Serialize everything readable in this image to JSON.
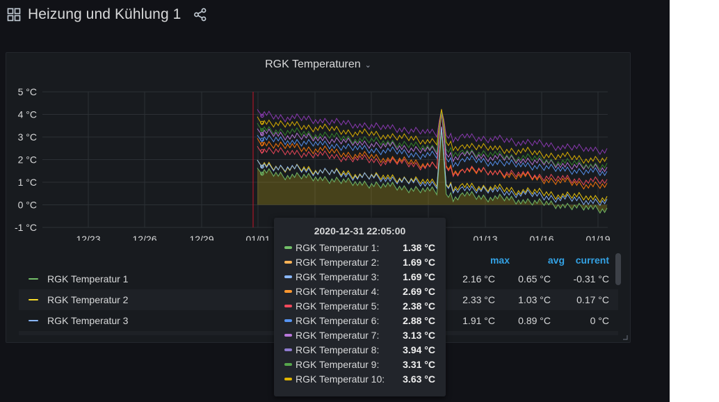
{
  "dashboard": {
    "title": "Heizung und Kühlung 1"
  },
  "panel": {
    "title": "RGK Temperaturen",
    "x_ticks": [
      "12/23",
      "12/26",
      "12/29",
      "01/01",
      "01/13",
      "01/16",
      "01/19"
    ],
    "y_ticks": [
      "5 °C",
      "4 °C",
      "3 °C",
      "2 °C",
      "1 °C",
      "0 °C",
      "-1 °C"
    ]
  },
  "chart_data": {
    "type": "line",
    "title": "RGK Temperaturen",
    "ylim": [
      -1,
      5
    ],
    "yunit": "°C",
    "x_range": [
      "12/21",
      "01/20"
    ],
    "data_start": "12/31",
    "grid": true,
    "series": [
      {
        "name": "RGK Temperatur 1",
        "color": "#73bf69",
        "start": 1.38,
        "end": -0.31
      },
      {
        "name": "RGK Temperatur 2",
        "color": "#f2cc0c",
        "start": 1.69,
        "end": 0.17
      },
      {
        "name": "RGK Temperatur 3",
        "color": "#8ab8ff",
        "start": 1.69,
        "end": 0.0
      },
      {
        "name": "RGK Temperatur 4",
        "color": "#ff780a",
        "start": 2.69,
        "end": 0.7
      },
      {
        "name": "RGK Temperatur 5",
        "color": "#f2495c",
        "start": 2.38,
        "end": 0.9
      },
      {
        "name": "RGK Temperatur 6",
        "color": "#5794f2",
        "start": 2.88,
        "end": 1.3
      },
      {
        "name": "RGK Temperatur 7",
        "color": "#b877d9",
        "start": 3.13,
        "end": 1.5
      },
      {
        "name": "RGK Temperatur 8",
        "color": "#8f3bb8",
        "start": 3.94,
        "end": 2.3
      },
      {
        "name": "RGK Temperatur 9",
        "color": "#37872d",
        "start": 3.31,
        "end": 1.6
      },
      {
        "name": "RGK Temperatur 10",
        "color": "#e0b400",
        "start": 3.63,
        "end": 1.85
      }
    ]
  },
  "legend": {
    "columns": {
      "max": "max",
      "avg": "avg",
      "current": "current"
    },
    "rows": [
      {
        "name": "RGK Temperatur 1",
        "color": "#73bf69",
        "max": "2.16 °C",
        "avg": "0.65 °C",
        "current": "-0.31 °C"
      },
      {
        "name": "RGK Temperatur 2",
        "color": "#fade2a",
        "max": "2.33 °C",
        "avg": "1.03 °C",
        "current": "0.17 °C"
      },
      {
        "name": "RGK Temperatur 3",
        "color": "#8ab8ff",
        "max": "1.91 °C",
        "avg": "0.89 °C",
        "current": "0 °C"
      }
    ]
  },
  "tooltip": {
    "time": "2020-12-31 22:05:00",
    "rows": [
      {
        "label": "RGK Temperatur 1:",
        "value": "1.38 °C",
        "color": "#73bf69"
      },
      {
        "label": "RGK Temperatur 2:",
        "value": "1.69 °C",
        "color": "#ffb357"
      },
      {
        "label": "RGK Temperatur 3:",
        "value": "1.69 °C",
        "color": "#8ab8ff"
      },
      {
        "label": "RGK Temperatur 4:",
        "value": "2.69 °C",
        "color": "#ff9830"
      },
      {
        "label": "RGK Temperatur 5:",
        "value": "2.38 °C",
        "color": "#f2495c"
      },
      {
        "label": "RGK Temperatur 6:",
        "value": "2.88 °C",
        "color": "#5794f2"
      },
      {
        "label": "RGK Temperatur 7:",
        "value": "3.13 °C",
        "color": "#b877d9"
      },
      {
        "label": "RGK Temperatur 8:",
        "value": "3.94 °C",
        "color": "#8f7bcf"
      },
      {
        "label": "RGK Temperatur 9:",
        "value": "3.31 °C",
        "color": "#56a64b"
      },
      {
        "label": "RGK Temperatur 10:",
        "value": "3.63 °C",
        "color": "#e0b400"
      }
    ]
  }
}
